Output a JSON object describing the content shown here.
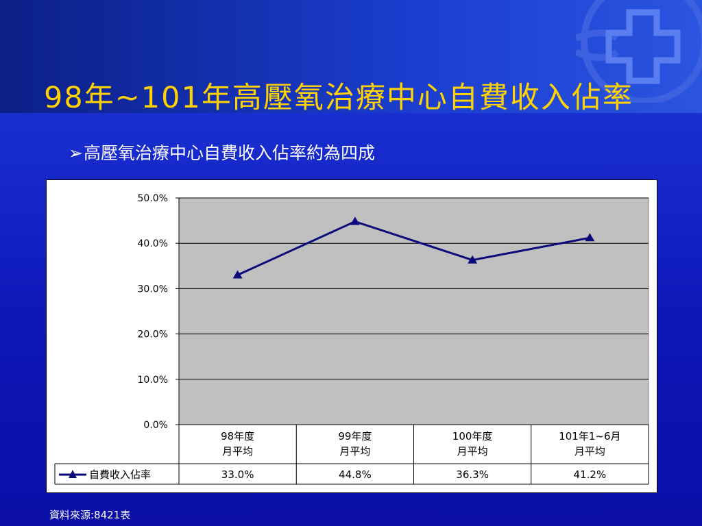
{
  "title": "98年~101年高壓氧治療中心自費收入佔率",
  "bullet": "高壓氧治療中心自費收入佔率約為四成",
  "bullet_icon": "arrow-right-bullet-icon",
  "logo_icon": "medical-cross-logo-icon",
  "source": "資料來源:8421表",
  "colors": {
    "title": "#ffd200",
    "series": "#0a0a7a",
    "plot_bg": "#c0c0c0"
  },
  "chart_data": {
    "type": "line",
    "categories": [
      [
        "98年度",
        "月平均"
      ],
      [
        "99年度",
        "月平均"
      ],
      [
        "100年度",
        "月平均"
      ],
      [
        "101年1~6月",
        "月平均"
      ]
    ],
    "series": [
      {
        "name": "自費收入佔率",
        "values": [
          33.0,
          44.8,
          36.3,
          41.2
        ],
        "labels": [
          "33.0%",
          "44.8%",
          "36.3%",
          "41.2%"
        ]
      }
    ],
    "ylim": [
      0,
      50
    ],
    "yticks": [
      "0.0%",
      "10.0%",
      "20.0%",
      "30.0%",
      "40.0%",
      "50.0%"
    ],
    "grid": true,
    "legend": "data-table"
  }
}
